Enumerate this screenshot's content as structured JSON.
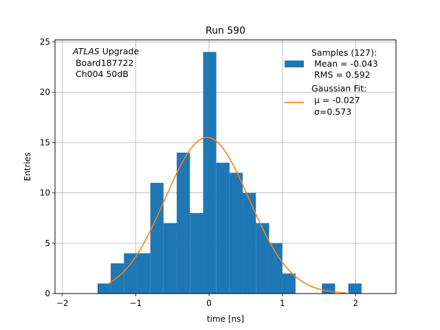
{
  "chart_data": {
    "type": "bar",
    "title": "Run 590",
    "xlabel": "time [ns]",
    "ylabel": "Entries",
    "xlim": [
      -2.1,
      2.55
    ],
    "ylim": [
      0,
      25.2
    ],
    "xticks": [
      -2,
      -1,
      0,
      1,
      2
    ],
    "xtick_labels": [
      "−2",
      "−1",
      "0",
      "1",
      "2"
    ],
    "yticks": [
      0,
      5,
      10,
      15,
      20,
      25
    ],
    "ytick_labels": [
      "0",
      "5",
      "10",
      "15",
      "20",
      "25"
    ],
    "grid": true,
    "legend_position": "top-right",
    "bin_width": 0.18,
    "bin_lefts": [
      -1.52,
      -1.34,
      -1.16,
      -0.98,
      -0.8,
      -0.62,
      -0.44,
      -0.26,
      -0.08,
      0.1,
      0.28,
      0.46,
      0.64,
      0.82,
      1.0,
      1.18,
      1.36,
      1.54,
      1.72,
      1.9
    ],
    "values": [
      1,
      3,
      4,
      4,
      11,
      7,
      14,
      8,
      24,
      13,
      12,
      10,
      7,
      5,
      2,
      0,
      0,
      1,
      0,
      1
    ],
    "series": [
      {
        "kind": "histogram",
        "color": "#1f77b4",
        "legend_lines": [
          "Samples (127):",
          " Mean = -0.043",
          " RMS = 0.592"
        ]
      },
      {
        "kind": "gaussian_fit",
        "color": "#ff7f0e",
        "mu": -0.027,
        "sigma": 0.573,
        "amplitude": 15.5,
        "x_range": [
          -1.38,
          1.87
        ],
        "legend_lines": [
          "Gaussian Fit:",
          " μ = -0.027",
          " σ=0.573"
        ]
      }
    ],
    "annotation": {
      "italic": "ATLAS",
      "first_line_rest": " Upgrade",
      "lines": [
        " Board187722",
        " Ch004 50dB"
      ]
    }
  }
}
